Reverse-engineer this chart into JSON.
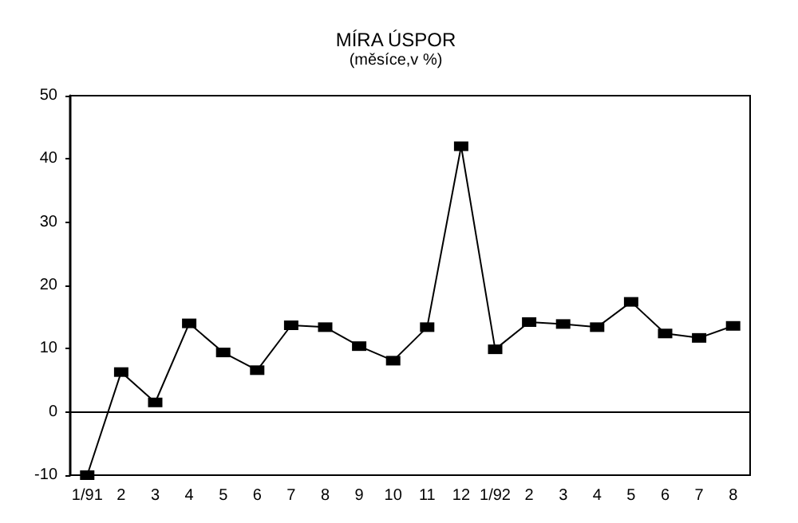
{
  "chart_data": {
    "type": "line",
    "title": "MÍRA ÚSPOR",
    "subtitle": "(měsíce,v %)",
    "categories": [
      "1/91",
      "2",
      "3",
      "4",
      "5",
      "6",
      "7",
      "8",
      "9",
      "10",
      "11",
      "12",
      "1/92",
      "2",
      "3",
      "4",
      "5",
      "6",
      "7",
      "8"
    ],
    "series": [
      {
        "color": "#000000",
        "values": [
          -10,
          6.3,
          1.5,
          14,
          9.4,
          6.6,
          13.7,
          13.4,
          10.4,
          8.1,
          13.4,
          42,
          9.9,
          14.2,
          13.9,
          13.4,
          17.4,
          12.4,
          11.7,
          13.6
        ]
      }
    ],
    "ylim": [
      -10,
      50
    ],
    "yticks": [
      -10,
      0,
      10,
      20,
      30,
      40,
      50
    ],
    "ref_lines": [
      {
        "axis": "y",
        "value": 0,
        "color": "#000000"
      }
    ],
    "grid": false,
    "marker": "square",
    "line_style": "solid"
  }
}
